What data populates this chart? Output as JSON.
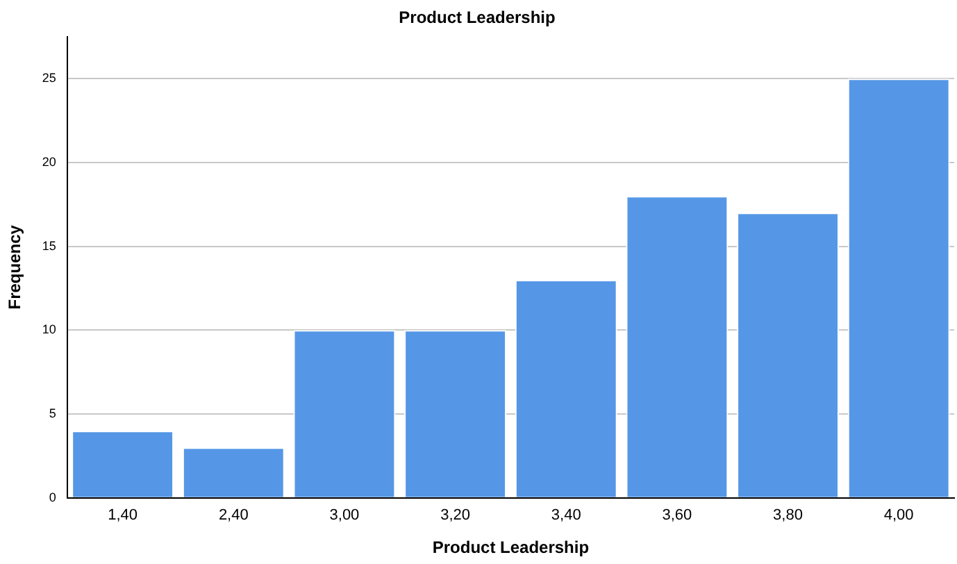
{
  "chart_data": {
    "type": "bar",
    "title": "Product Leadership",
    "xlabel": "Product Leadership",
    "ylabel": "Frequency",
    "categories": [
      "1,40",
      "2,40",
      "3,00",
      "3,20",
      "3,40",
      "3,60",
      "3,80",
      "4,00"
    ],
    "values": [
      4,
      3,
      10,
      10,
      13,
      18,
      17,
      25
    ],
    "color": "#5597e6",
    "ylim": [
      0,
      27.5
    ],
    "yticks": [
      0,
      5,
      10,
      15,
      20,
      25
    ],
    "grid": "y",
    "legend": false
  }
}
